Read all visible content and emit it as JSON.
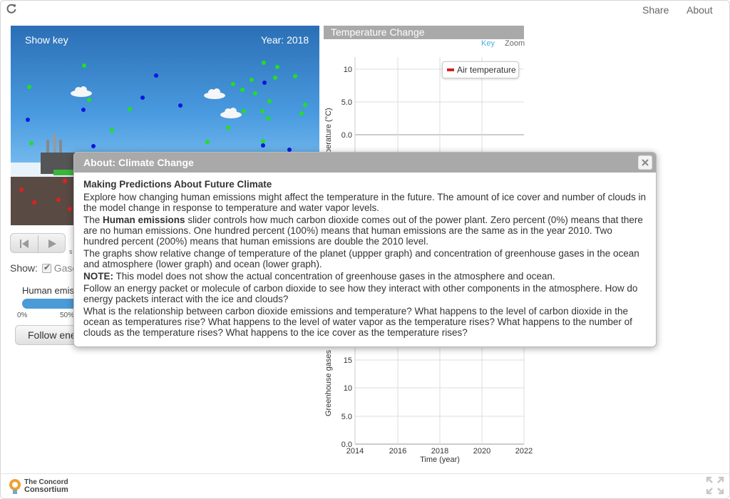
{
  "header": {
    "share_label": "Share",
    "about_label": "About"
  },
  "sim": {
    "show_key_label": "Show key",
    "year_label": "Year: 2018",
    "show_label": "Show:",
    "gases_label": "Gase",
    "emissions_label": "Human emis",
    "tick_0": "0%",
    "tick_50": "50%",
    "follow_label": "Follow ene",
    "small_label": "s"
  },
  "graph": {
    "title": "Temperature Change",
    "key_link": "Key",
    "zoom_link": "Zoom",
    "legend_air": "Air temperature",
    "upper_ylabel": "perature (°C)",
    "lower_ylabel": "Greenhouse gases",
    "xlabel": "Time (year)",
    "upper_ticks": [
      "10",
      "5.0",
      "0.0"
    ],
    "lower_ticks": [
      "15",
      "10",
      "5.0",
      "0.0"
    ],
    "x_ticks": [
      "2014",
      "2016",
      "2018",
      "2020",
      "2022"
    ],
    "accent": "#d62020"
  },
  "chart_data": {
    "type": "line",
    "xlabel": "Time (year)",
    "x": [
      2014,
      2016,
      2018,
      2020,
      2022
    ],
    "upper": {
      "ylabel": "perature (°C)",
      "ylim_visible": [
        0,
        10
      ],
      "series": [
        {
          "name": "Air temperature",
          "values": []
        }
      ]
    },
    "lower": {
      "ylabel": "Greenhouse gases",
      "ylim": [
        0,
        15
      ],
      "series": []
    },
    "grid": true,
    "legend": "top-right"
  },
  "dialog": {
    "title": "About: Climate Change",
    "heading": "Making Predictions About Future Climate",
    "p1": "Explore how changing human emissions might affect the temperature in the future. The amount of ice cover and number of clouds in the model change in response to temperature and water vapor levels.",
    "p2_prefix": "The ",
    "p2_bold": "Human emissions",
    "p2_rest": " slider controls how much carbon dioxide comes out of the power plant. Zero percent (0%) means that there are no human emissions. One hundred percent (100%) means that human emissions are the same as in the year 2010. Two hundred percent (200%) means that human emissions are double the 2010 level.",
    "p3": "The graphs show relative change of temperature of the planet (uppper graph) and concentration of greenhouse gases in the ocean and atmosphere (lower graph) and ocean (lower graph).",
    "p4_bold": "NOTE:",
    "p4_rest": " This model does not show the actual concentration of greenhouse gases in the atmosphere and ocean.",
    "p5": "Follow an energy packet or molecule of carbon dioxide to see how they interact with other components in the atmosphere. How do energy packets interact with the ice and clouds?",
    "p6": "What is the relationship between carbon dioxide emissions and temperature? What happens to the level of carbon dioxide in the ocean as temperatures rise? What happens to the level of water vapor as the temperature rises? What happens to the number of clouds as the temperature rises? What happens to the ice cover as the temperature rises?"
  },
  "footer": {
    "logo_line1": "The Concord",
    "logo_line2": "Consortium"
  }
}
